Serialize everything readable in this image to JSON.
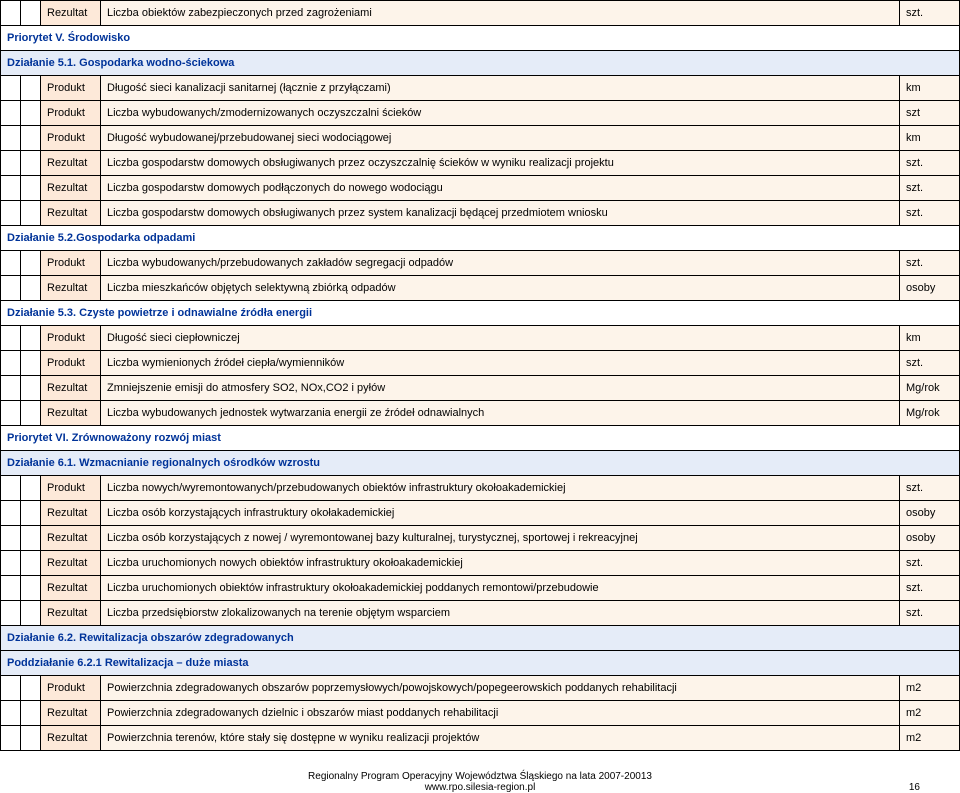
{
  "colors": {
    "type_bg": "#fde9d9",
    "desc_bg": "#fdf4ea",
    "action_bg": "#e5ecf8",
    "border": "#000000",
    "heading_text": "#003399"
  },
  "footer": {
    "line1": "Regionalny Program Operacyjny Województwa Śląskiego na lata 2007-20013",
    "line2": "www.rpo.silesia-region.pl",
    "page": "16"
  },
  "rows": [
    {
      "kind": "data",
      "type": "Rezultat",
      "desc": "Liczba obiektów zabezpieczonych przed zagrożeniami",
      "unit": "szt."
    },
    {
      "kind": "priority",
      "text": "Priorytet V. Środowisko"
    },
    {
      "kind": "action",
      "text": "Działanie 5.1. Gospodarka wodno-ściekowa"
    },
    {
      "kind": "data",
      "type": "Produkt",
      "desc": "Długość sieci kanalizacji sanitarnej (łącznie z przyłączami)",
      "unit": "km"
    },
    {
      "kind": "data",
      "type": "Produkt",
      "desc": "Liczba wybudowanych/zmodernizowanych oczyszczalni ścieków",
      "unit": "szt"
    },
    {
      "kind": "data",
      "type": "Produkt",
      "desc": "Długość wybudowanej/przebudowanej sieci wodociągowej",
      "unit": "km"
    },
    {
      "kind": "data",
      "type": "Rezultat",
      "desc": "Liczba gospodarstw domowych obsługiwanych przez oczyszczalnię ścieków w wyniku realizacji projektu",
      "unit": "szt."
    },
    {
      "kind": "data",
      "type": "Rezultat",
      "desc": "Liczba gospodarstw domowych podłączonych do nowego wodociągu",
      "unit": "szt."
    },
    {
      "kind": "data",
      "type": "Rezultat",
      "desc": "Liczba gospodarstw domowych obsługiwanych przez system kanalizacji będącej przedmiotem wniosku",
      "unit": "szt."
    },
    {
      "kind": "action-white",
      "text": "Działanie 5.2.Gospodarka odpadami"
    },
    {
      "kind": "data",
      "type": "Produkt",
      "desc": "Liczba wybudowanych/przebudowanych zakładów segregacji odpadów",
      "unit": "szt."
    },
    {
      "kind": "data",
      "type": "Rezultat",
      "desc": "Liczba mieszkańców objętych selektywną zbiórką odpadów",
      "unit": "osoby"
    },
    {
      "kind": "action-white",
      "text": "Działanie 5.3. Czyste powietrze i odnawialne źródła energii"
    },
    {
      "kind": "data",
      "type": "Produkt",
      "desc": "Długość sieci ciepłowniczej",
      "unit": "km"
    },
    {
      "kind": "data",
      "type": "Produkt",
      "desc": "Liczba wymienionych źródeł ciepła/wymienników",
      "unit": "szt."
    },
    {
      "kind": "data",
      "type": "Rezultat",
      "desc": "Zmniejszenie emisji do atmosfery SO2, NOx,CO2 i pyłów",
      "unit": "Mg/rok"
    },
    {
      "kind": "data",
      "type": "Rezultat",
      "desc": "Liczba wybudowanych jednostek wytwarzania energii ze źródeł odnawialnych",
      "unit": "Mg/rok"
    },
    {
      "kind": "priority",
      "text": "Priorytet VI. Zrównoważony rozwój miast"
    },
    {
      "kind": "action",
      "text": "Działanie 6.1. Wzmacnianie regionalnych ośrodków wzrostu"
    },
    {
      "kind": "data",
      "type": "Produkt",
      "desc": "Liczba nowych/wyremontowanych/przebudowanych obiektów infrastruktury okołoakademickiej",
      "unit": "szt."
    },
    {
      "kind": "data",
      "type": "Rezultat",
      "desc": "Liczba osób korzystających infrastruktury okołakademickiej",
      "unit": "osoby"
    },
    {
      "kind": "data",
      "type": "Rezultat",
      "desc": "Liczba osób korzystających z nowej / wyremontowanej bazy kulturalnej, turystycznej, sportowej i rekreacyjnej",
      "unit": "osoby"
    },
    {
      "kind": "data",
      "type": "Rezultat",
      "desc": "Liczba uruchomionych nowych obiektów infrastruktury okołoakademickiej",
      "unit": "szt."
    },
    {
      "kind": "data",
      "type": "Rezultat",
      "desc": "Liczba uruchomionych obiektów  infrastruktury okołoakademickiej poddanych remontowi/przebudowie",
      "unit": "szt."
    },
    {
      "kind": "data",
      "type": "Rezultat",
      "desc": "Liczba przedsiębiorstw zlokalizowanych na terenie objętym wsparciem",
      "unit": "szt."
    },
    {
      "kind": "action",
      "text": "Działanie 6.2. Rewitalizacja obszarów zdegradowanych"
    },
    {
      "kind": "subaction",
      "text": "Poddziałanie 6.2.1 Rewitalizacja – duże miasta"
    },
    {
      "kind": "data",
      "type": "Produkt",
      "desc": "Powierzchnia zdegradowanych obszarów poprzemysłowych/powojskowych/popegeerowskich poddanych rehabilitacji",
      "unit": "m2"
    },
    {
      "kind": "data",
      "type": "Rezultat",
      "desc": "Powierzchnia zdegradowanych dzielnic i obszarów miast poddanych rehabilitacji",
      "unit": "m2"
    },
    {
      "kind": "data",
      "type": "Rezultat",
      "desc": "Powierzchnia terenów, które stały się dostępne w wyniku realizacji projektów",
      "unit": "m2"
    }
  ]
}
